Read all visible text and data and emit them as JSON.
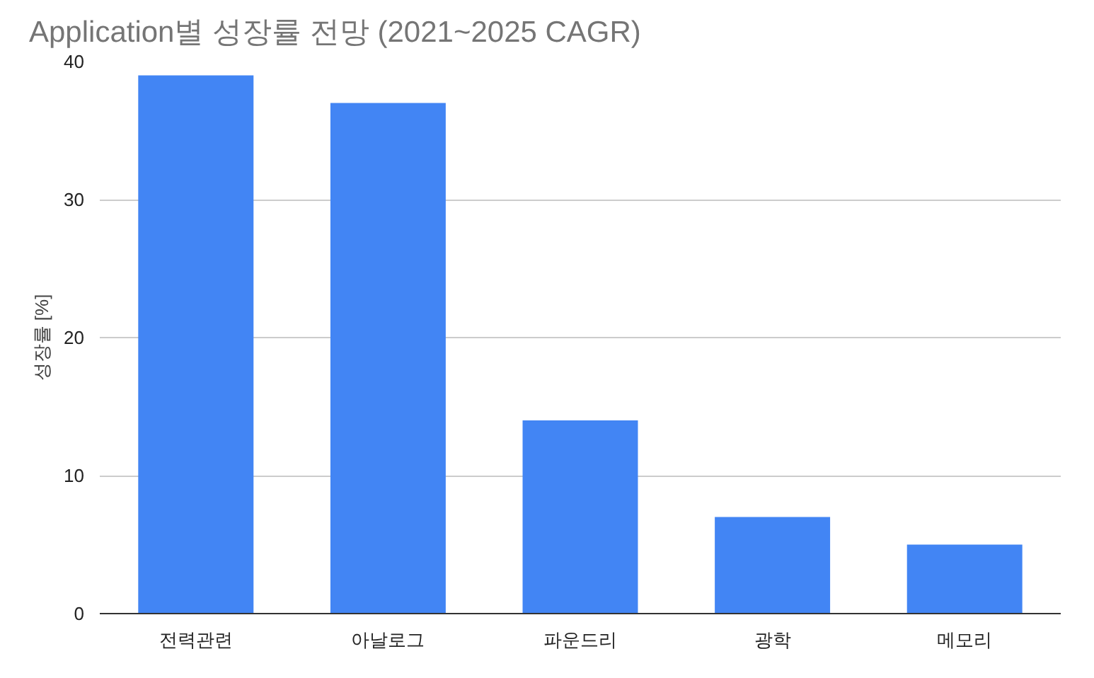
{
  "chart_data": {
    "type": "bar",
    "title": "Application별 성장률 전망 (2021~2025 CAGR)",
    "ylabel": "성장률 [%]",
    "categories": [
      "전력관련",
      "아날로그",
      "파운드리",
      "광학",
      "메모리"
    ],
    "values": [
      39,
      37,
      14,
      7,
      5
    ],
    "color": "#4285f4",
    "ylim": [
      0,
      40
    ],
    "yticks": [
      0,
      10,
      20,
      30,
      40
    ],
    "grid": "y"
  }
}
